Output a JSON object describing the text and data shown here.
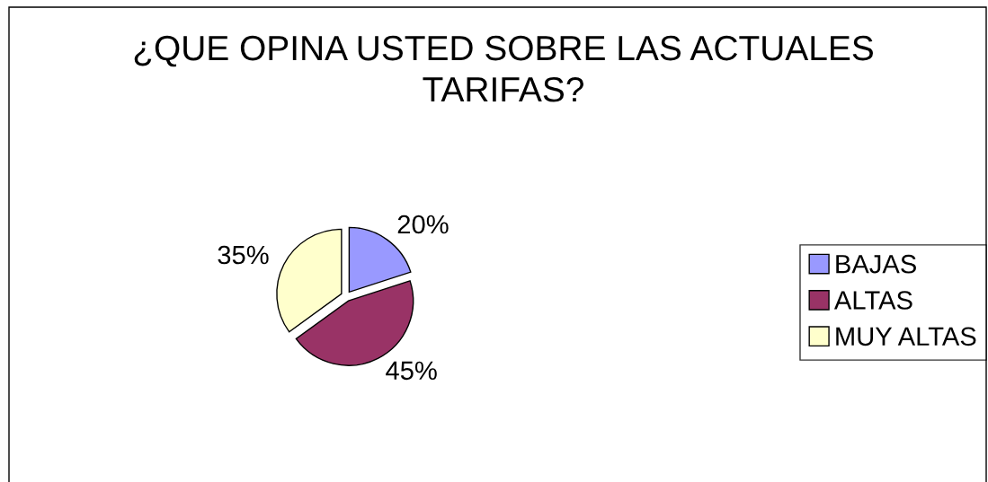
{
  "chart_data": {
    "type": "pie",
    "title": "¿QUE OPINA USTED SOBRE LAS ACTUALES\nTARIFAS?",
    "categories": [
      "BAJAS",
      "ALTAS",
      "MUY ALTAS"
    ],
    "values": [
      20,
      45,
      35
    ],
    "colors": [
      "#9999ff",
      "#993366",
      "#ffffcc"
    ],
    "value_labels": [
      "20%",
      "45%",
      "35%"
    ],
    "legend": "right"
  }
}
